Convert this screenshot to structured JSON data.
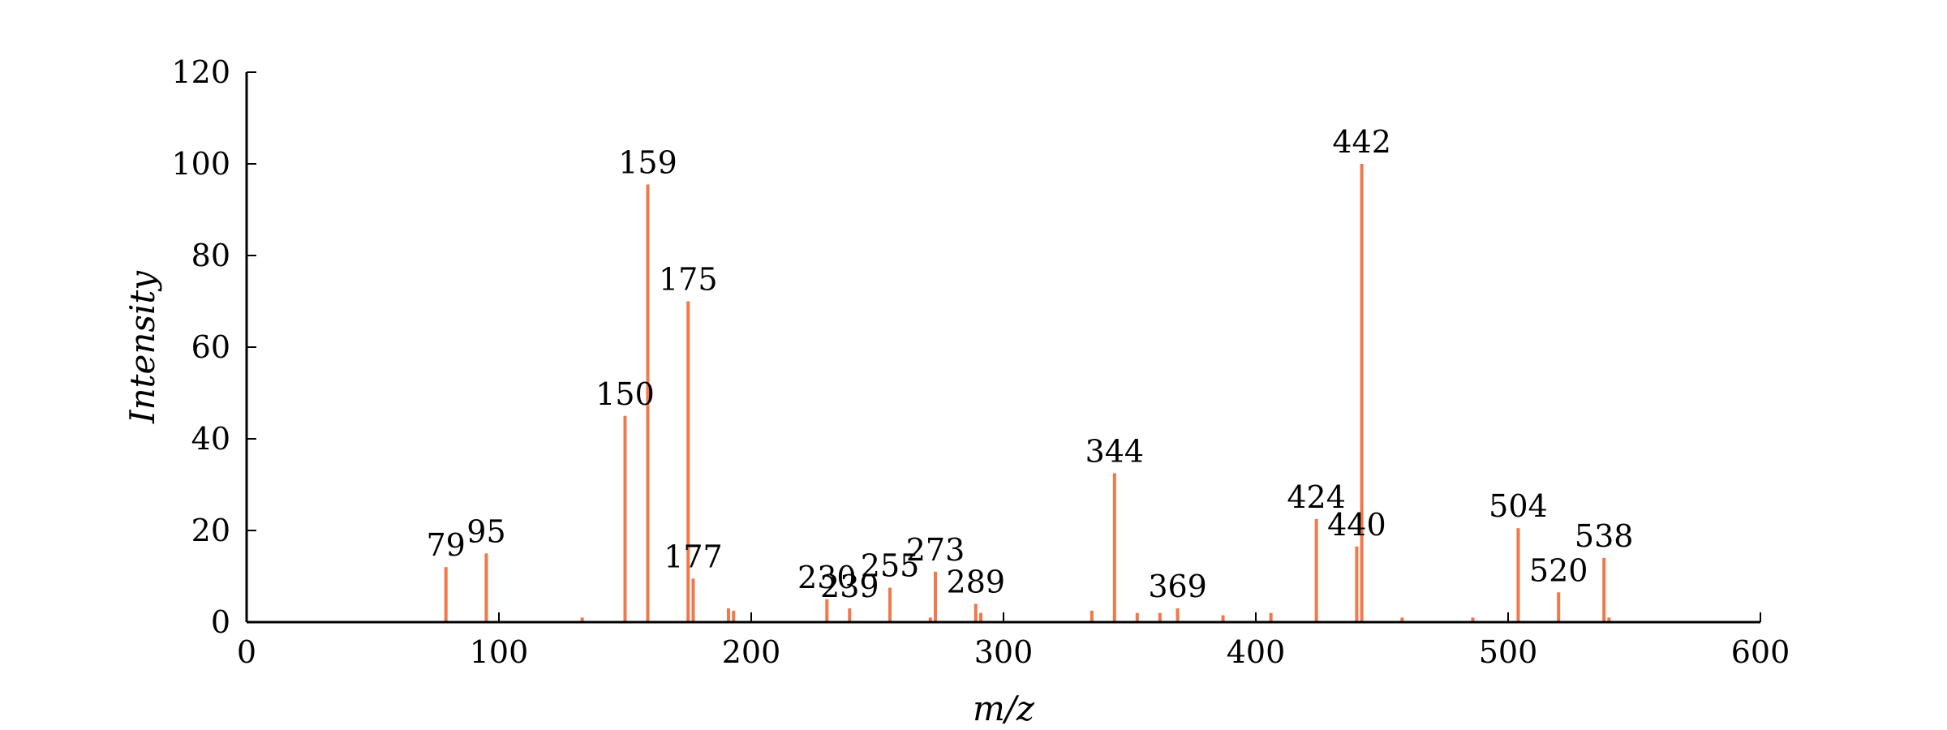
{
  "chart_data": {
    "type": "bar",
    "xlabel": "m/z",
    "ylabel": "Intensity",
    "xlim": [
      0,
      600
    ],
    "ylim": [
      0,
      120
    ],
    "xticks": [
      0,
      100,
      200,
      300,
      400,
      500,
      600
    ],
    "yticks": [
      0,
      20,
      40,
      60,
      80,
      100,
      120
    ],
    "grid": false,
    "legend": "none",
    "bar_color": "#f0784a",
    "peaks": [
      {
        "mz": 79,
        "intensity": 12,
        "label": "79"
      },
      {
        "mz": 95,
        "intensity": 15,
        "label": "95"
      },
      {
        "mz": 133,
        "intensity": 1,
        "label": ""
      },
      {
        "mz": 150,
        "intensity": 45,
        "label": "150"
      },
      {
        "mz": 159,
        "intensity": 95.5,
        "label": "159"
      },
      {
        "mz": 175,
        "intensity": 70,
        "label": "175"
      },
      {
        "mz": 177,
        "intensity": 9.5,
        "label": "177"
      },
      {
        "mz": 191,
        "intensity": 3,
        "label": ""
      },
      {
        "mz": 193,
        "intensity": 2.5,
        "label": ""
      },
      {
        "mz": 230,
        "intensity": 5,
        "label": "230"
      },
      {
        "mz": 239,
        "intensity": 3,
        "label": "239"
      },
      {
        "mz": 255,
        "intensity": 7.5,
        "label": "255"
      },
      {
        "mz": 271,
        "intensity": 1,
        "label": ""
      },
      {
        "mz": 273,
        "intensity": 11,
        "label": "273"
      },
      {
        "mz": 289,
        "intensity": 4,
        "label": "289"
      },
      {
        "mz": 291,
        "intensity": 2,
        "label": ""
      },
      {
        "mz": 335,
        "intensity": 2.5,
        "label": ""
      },
      {
        "mz": 344,
        "intensity": 32.5,
        "label": "344"
      },
      {
        "mz": 353,
        "intensity": 2,
        "label": ""
      },
      {
        "mz": 362,
        "intensity": 2,
        "label": ""
      },
      {
        "mz": 369,
        "intensity": 3,
        "label": "369"
      },
      {
        "mz": 387,
        "intensity": 1.5,
        "label": ""
      },
      {
        "mz": 406,
        "intensity": 2,
        "label": ""
      },
      {
        "mz": 424,
        "intensity": 22.5,
        "label": "424"
      },
      {
        "mz": 440,
        "intensity": 16.5,
        "label": "440"
      },
      {
        "mz": 442,
        "intensity": 100,
        "label": "442"
      },
      {
        "mz": 458,
        "intensity": 1,
        "label": ""
      },
      {
        "mz": 486,
        "intensity": 1,
        "label": ""
      },
      {
        "mz": 504,
        "intensity": 20.5,
        "label": "504"
      },
      {
        "mz": 520,
        "intensity": 6.5,
        "label": "520"
      },
      {
        "mz": 538,
        "intensity": 14,
        "label": "538"
      },
      {
        "mz": 540,
        "intensity": 1,
        "label": ""
      }
    ]
  }
}
